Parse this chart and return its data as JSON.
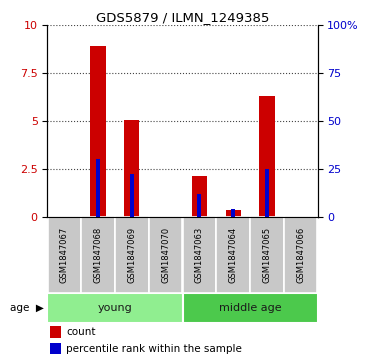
{
  "title": "GDS5879 / ILMN_1249385",
  "samples": [
    "GSM1847067",
    "GSM1847068",
    "GSM1847069",
    "GSM1847070",
    "GSM1847063",
    "GSM1847064",
    "GSM1847065",
    "GSM1847066"
  ],
  "counts": [
    0,
    8.9,
    5.05,
    0,
    2.1,
    0.35,
    6.3,
    0
  ],
  "percentiles": [
    0,
    30,
    22,
    0,
    12,
    4,
    25,
    0
  ],
  "groups": [
    {
      "label": "young",
      "start": 0,
      "end": 4,
      "color": "#90EE90"
    },
    {
      "label": "middle age",
      "start": 4,
      "end": 8,
      "color": "#4CC94C"
    }
  ],
  "ylim_left": [
    0,
    10
  ],
  "ylim_right": [
    0,
    100
  ],
  "yticks_left": [
    0,
    2.5,
    5,
    7.5,
    10
  ],
  "yticks_right": [
    0,
    25,
    50,
    75,
    100
  ],
  "yticklabels_right": [
    "0",
    "25",
    "50",
    "75",
    "100%"
  ],
  "yticklabels_left": [
    "0",
    "2.5",
    "5",
    "7.5",
    "10"
  ],
  "bar_color": "#CC0000",
  "percentile_color": "#0000CC",
  "grid_color": "#444444",
  "bar_width": 0.45,
  "percentile_bar_width": 0.12,
  "bg_color": "#ffffff",
  "sample_box_color": "#C8C8C8",
  "age_label": "age",
  "legend_count": "count",
  "legend_percentile": "percentile rank within the sample"
}
